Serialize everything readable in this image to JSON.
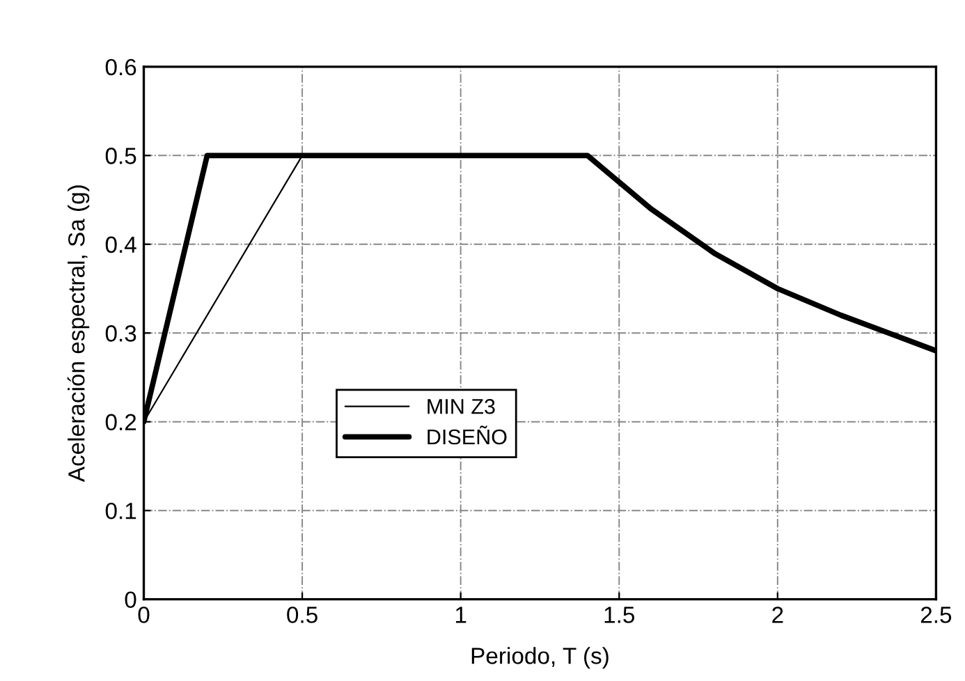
{
  "chart_data": {
    "type": "line",
    "xlabel": "Periodo, T (s)",
    "ylabel": "Aceleración espectral, Sa (g)",
    "series": [
      {
        "name": "MIN Z3",
        "color": "#000000",
        "x": [
          0,
          0.5
        ],
        "values": [
          0.2,
          0.5
        ]
      },
      {
        "name": "DISEÑO",
        "color": "#000000",
        "x": [
          0,
          0.2,
          1.4,
          1.5,
          1.6,
          1.8,
          2.0,
          2.2,
          2.5
        ],
        "values": [
          0.2,
          0.5,
          0.5,
          0.47,
          0.44,
          0.39,
          0.35,
          0.32,
          0.28
        ]
      }
    ],
    "xlim": [
      0,
      2.5
    ],
    "xticks": [
      0,
      0.5,
      1,
      1.5,
      2,
      2.5
    ],
    "ylim": [
      0,
      0.6
    ],
    "yticks": [
      0,
      0.1,
      0.2,
      0.3,
      0.4,
      0.5,
      0.6
    ],
    "grid": true,
    "legend": "center left",
    "marker": "none",
    "line_style": "solid"
  }
}
